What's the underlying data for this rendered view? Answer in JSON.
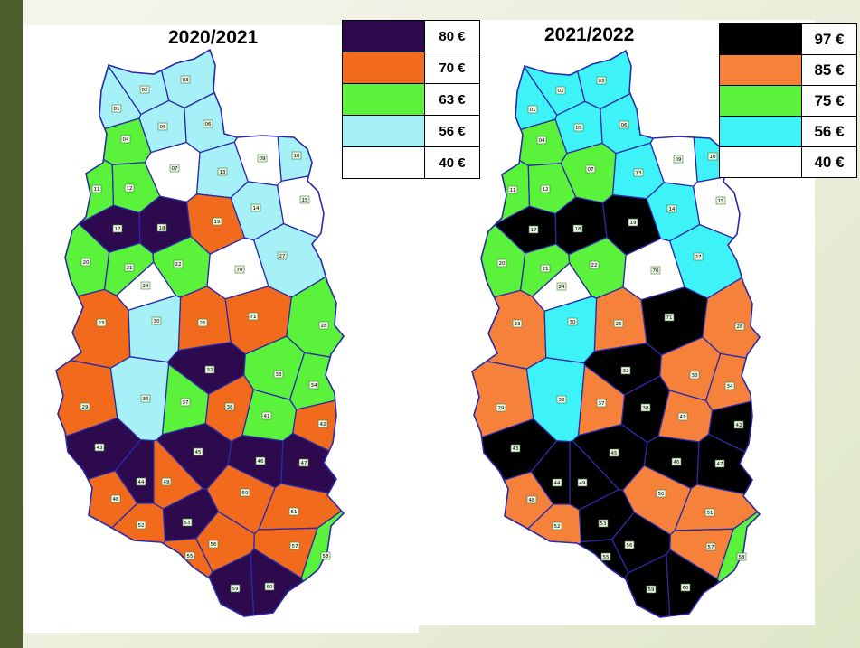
{
  "left_panel": {
    "title": "2020/2021",
    "legend": [
      {
        "price": "80 €",
        "color": "#2d0a4e"
      },
      {
        "price": "70 €",
        "color": "#f26a1b"
      },
      {
        "price": "63 €",
        "color": "#5af23a"
      },
      {
        "price": "56 €",
        "color": "#a6f0f8"
      },
      {
        "price": "40 €",
        "color": "#ffffff"
      }
    ]
  },
  "right_panel": {
    "title": "2021/2022",
    "legend": [
      {
        "price": "97 €",
        "color": "#000000"
      },
      {
        "price": "85 €",
        "color": "#f5813a"
      },
      {
        "price": "75 €",
        "color": "#5af23a"
      },
      {
        "price": "56 €",
        "color": "#3ef3f8"
      },
      {
        "price": "40 €",
        "color": "#ffffff"
      }
    ]
  },
  "zones": [
    {
      "id": "01",
      "left": "56 €",
      "right": "56 €"
    },
    {
      "id": "02",
      "left": "56 €",
      "right": "56 €"
    },
    {
      "id": "03",
      "left": "56 €",
      "right": "56 €"
    },
    {
      "id": "04",
      "left": "63 €",
      "right": "75 €"
    },
    {
      "id": "05",
      "left": "56 €",
      "right": "56 €"
    },
    {
      "id": "06",
      "left": "56 €",
      "right": "56 €"
    },
    {
      "id": "07",
      "left": "40 €",
      "right": "75 €"
    },
    {
      "id": "09",
      "left": "40 €",
      "right": "40 €"
    },
    {
      "id": "10",
      "left": "56 €",
      "right": "56 €"
    },
    {
      "id": "11",
      "left": "63 €",
      "right": "75 €"
    },
    {
      "id": "12",
      "left": "63 €",
      "right": "75 €"
    },
    {
      "id": "13",
      "left": "56 €",
      "right": "56 €"
    },
    {
      "id": "14",
      "left": "56 €",
      "right": "56 €"
    },
    {
      "id": "15",
      "left": "40 €",
      "right": "40 €"
    },
    {
      "id": "17",
      "left": "80 €",
      "right": "97 €"
    },
    {
      "id": "18",
      "left": "80 €",
      "right": "97 €"
    },
    {
      "id": "19",
      "left": "70 €",
      "right": "97 €"
    },
    {
      "id": "20",
      "left": "63 €",
      "right": "75 €"
    },
    {
      "id": "21",
      "left": "63 €",
      "right": "75 €"
    },
    {
      "id": "22",
      "left": "63 €",
      "right": "75 €"
    },
    {
      "id": "23",
      "left": "70 €",
      "right": "85 €"
    },
    {
      "id": "24",
      "left": "40 €",
      "right": "40 €"
    },
    {
      "id": "25",
      "left": "70 €",
      "right": "85 €"
    },
    {
      "id": "27",
      "left": "56 €",
      "right": "56 €"
    },
    {
      "id": "28",
      "left": "63 €",
      "right": "85 €"
    },
    {
      "id": "29",
      "left": "70 €",
      "right": "85 €"
    },
    {
      "id": "30",
      "left": "56 €",
      "right": "56 €"
    },
    {
      "id": "32",
      "left": "80 €",
      "right": "97 €"
    },
    {
      "id": "33",
      "left": "63 €",
      "right": "85 €"
    },
    {
      "id": "34",
      "left": "63 €",
      "right": "85 €"
    },
    {
      "id": "36",
      "left": "56 €",
      "right": "56 €"
    },
    {
      "id": "37",
      "left": "63 €",
      "right": "85 €"
    },
    {
      "id": "38",
      "left": "70 €",
      "right": "97 €"
    },
    {
      "id": "41",
      "left": "63 €",
      "right": "85 €"
    },
    {
      "id": "42",
      "left": "70 €",
      "right": "97 €"
    },
    {
      "id": "43",
      "left": "80 €",
      "right": "97 €"
    },
    {
      "id": "44",
      "left": "80 €",
      "right": "97 €"
    },
    {
      "id": "45",
      "left": "80 €",
      "right": "97 €"
    },
    {
      "id": "46",
      "left": "80 €",
      "right": "97 €"
    },
    {
      "id": "47",
      "left": "80 €",
      "right": "97 €"
    },
    {
      "id": "48",
      "left": "70 €",
      "right": "85 €"
    },
    {
      "id": "49",
      "left": "70 €",
      "right": "97 €"
    },
    {
      "id": "50",
      "left": "70 €",
      "right": "85 €"
    },
    {
      "id": "51",
      "left": "70 €",
      "right": "85 €"
    },
    {
      "id": "52",
      "left": "70 €",
      "right": "85 €"
    },
    {
      "id": "53",
      "left": "80 €",
      "right": "97 €"
    },
    {
      "id": "55",
      "left": "70 €",
      "right": "97 €"
    },
    {
      "id": "56",
      "left": "70 €",
      "right": "97 €"
    },
    {
      "id": "57",
      "left": "70 €",
      "right": "85 €"
    },
    {
      "id": "58",
      "left": "63 €",
      "right": "75 €"
    },
    {
      "id": "59",
      "left": "80 €",
      "right": "97 €"
    },
    {
      "id": "60",
      "left": "80 €",
      "right": "97 €"
    },
    {
      "id": "70",
      "left": "40 €",
      "right": "40 €"
    },
    {
      "id": "71",
      "left": "70 €",
      "right": "97 €"
    }
  ]
}
